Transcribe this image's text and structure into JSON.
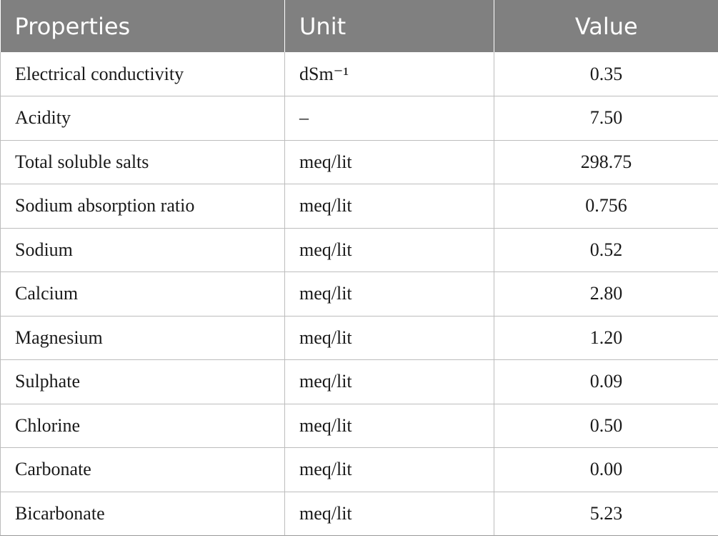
{
  "table": {
    "headers": {
      "properties": "Properties",
      "unit": "Unit",
      "value": "Value"
    },
    "rows": [
      {
        "property": "Electrical conductivity",
        "unit": "dSm⁻¹",
        "value": "0.35"
      },
      {
        "property": "Acidity",
        "unit": "–",
        "value": "7.50"
      },
      {
        "property": "Total soluble salts",
        "unit": "meq/lit",
        "value": "298.75"
      },
      {
        "property": "Sodium absorption ratio",
        "unit": "meq/lit",
        "value": "0.756"
      },
      {
        "property": "Sodium",
        "unit": "meq/lit",
        "value": "0.52"
      },
      {
        "property": "Calcium",
        "unit": "meq/lit",
        "value": "2.80"
      },
      {
        "property": "Magnesium",
        "unit": "meq/lit",
        "value": "1.20"
      },
      {
        "property": "Sulphate",
        "unit": "meq/lit",
        "value": "0.09"
      },
      {
        "property": "Chlorine",
        "unit": "meq/lit",
        "value": "0.50"
      },
      {
        "property": "Carbonate",
        "unit": "meq/lit",
        "value": "0.00"
      },
      {
        "property": "Bicarbonate",
        "unit": "meq/lit",
        "value": "5.23"
      }
    ]
  }
}
